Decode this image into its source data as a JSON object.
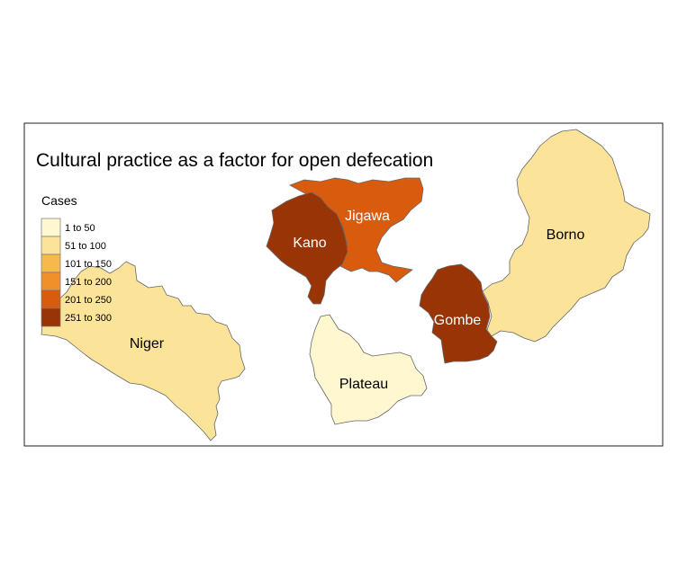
{
  "title": "Cultural practice as a factor for open defecation",
  "legend": {
    "title": "Cases",
    "classes": [
      {
        "label": "1 to 50",
        "color": "#fef7d0"
      },
      {
        "label": "51 to 100",
        "color": "#fbe39a"
      },
      {
        "label": "101 to 150",
        "color": "#f7b84c"
      },
      {
        "label": "151 to 200",
        "color": "#f0902a"
      },
      {
        "label": "201 to 250",
        "color": "#d95b0e"
      },
      {
        "label": "251 to 300",
        "color": "#993406"
      }
    ]
  },
  "states": [
    {
      "name": "Niger",
      "class": "51 to 100",
      "color": "#fbe39a",
      "label_color": "#000000"
    },
    {
      "name": "Kano",
      "class": "251 to 300",
      "color": "#993406",
      "label_color": "#ffffff"
    },
    {
      "name": "Jigawa",
      "class": "201 to 250",
      "color": "#d95b0e",
      "label_color": "#ffffff"
    },
    {
      "name": "Borno",
      "class": "51 to 100",
      "color": "#fbe39a",
      "label_color": "#000000"
    },
    {
      "name": "Gombe",
      "class": "251 to 300",
      "color": "#993406",
      "label_color": "#ffffff"
    },
    {
      "name": "Plateau",
      "class": "1 to 50",
      "color": "#fef7d0",
      "label_color": "#000000"
    }
  ]
}
